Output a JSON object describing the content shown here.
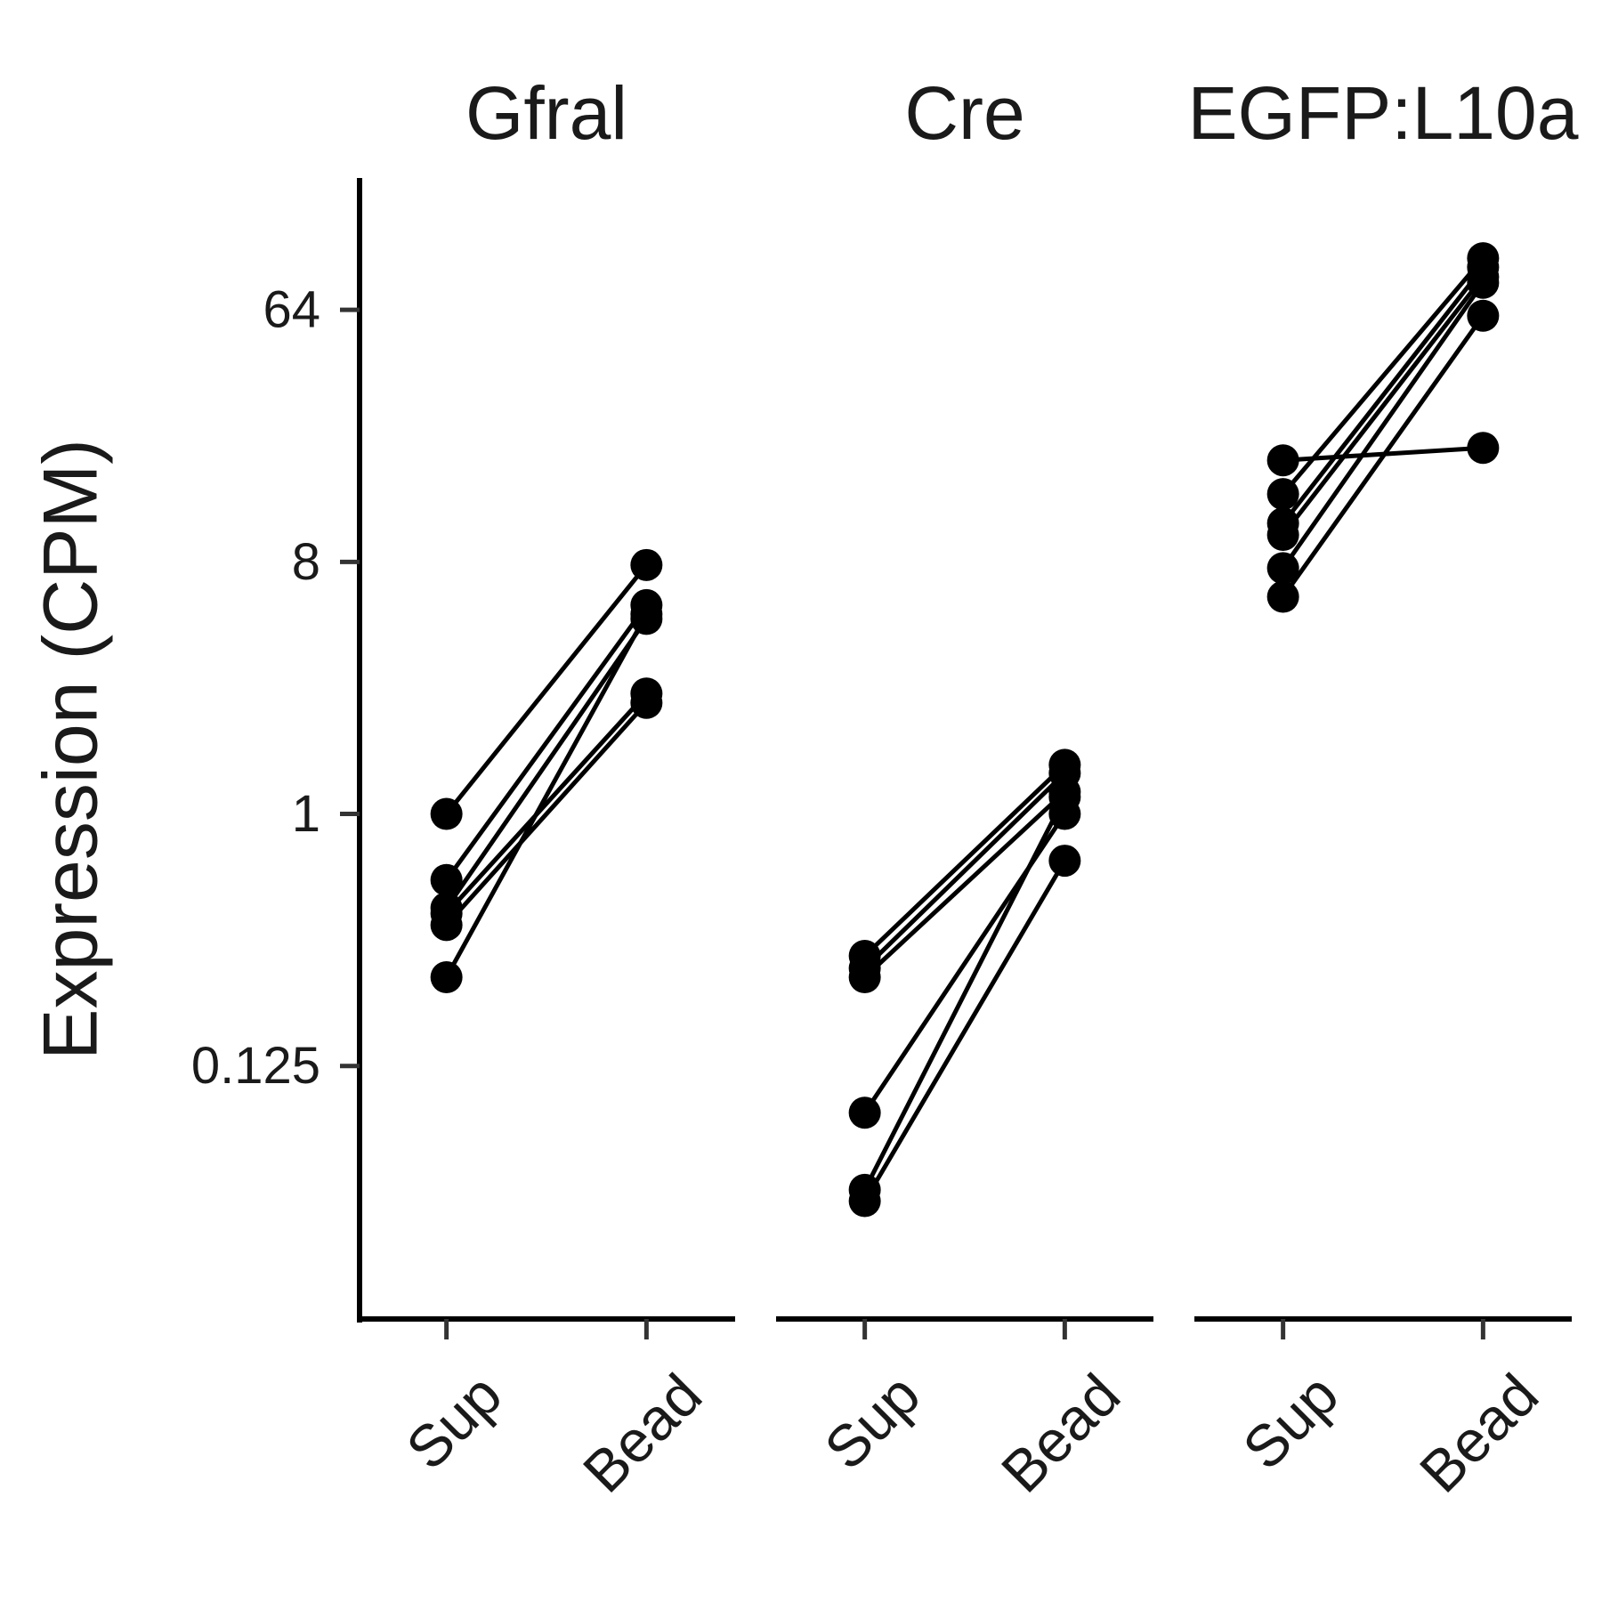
{
  "chart_data": {
    "type": "line",
    "ylabel": "Expression (CPM)",
    "y_scale": "log2",
    "ylim": [
      0.0155,
      190
    ],
    "yticks": [
      {
        "value": 0.125,
        "label": "0.125"
      },
      {
        "value": 1,
        "label": "1"
      },
      {
        "value": 8,
        "label": "8"
      },
      {
        "value": 64,
        "label": "64"
      }
    ],
    "categories": [
      "Sup",
      "Bead"
    ],
    "grid": false,
    "colors": {
      "line": "#000000",
      "point": "#000000",
      "axis": "#000000",
      "tick": "#333333"
    },
    "facets": [
      {
        "title": "Gfral",
        "pairs": [
          [
            1.0,
            7.8
          ],
          [
            0.58,
            5.6
          ],
          [
            0.46,
            5.0
          ],
          [
            0.44,
            2.7
          ],
          [
            0.4,
            2.5
          ],
          [
            0.26,
            5.2
          ]
        ]
      },
      {
        "title": "Cre",
        "pairs": [
          [
            0.31,
            1.5
          ],
          [
            0.28,
            1.4
          ],
          [
            0.26,
            1.2
          ],
          [
            0.085,
            1.0
          ],
          [
            0.045,
            1.15
          ],
          [
            0.041,
            0.68
          ]
        ]
      },
      {
        "title": "EGFP:L10a",
        "pairs": [
          [
            14.0,
            98.0
          ],
          [
            11.0,
            91.0
          ],
          [
            10.0,
            84.0
          ],
          [
            7.6,
            80.0
          ],
          [
            6.0,
            61.0
          ],
          [
            18.5,
            20.5
          ]
        ]
      }
    ]
  }
}
